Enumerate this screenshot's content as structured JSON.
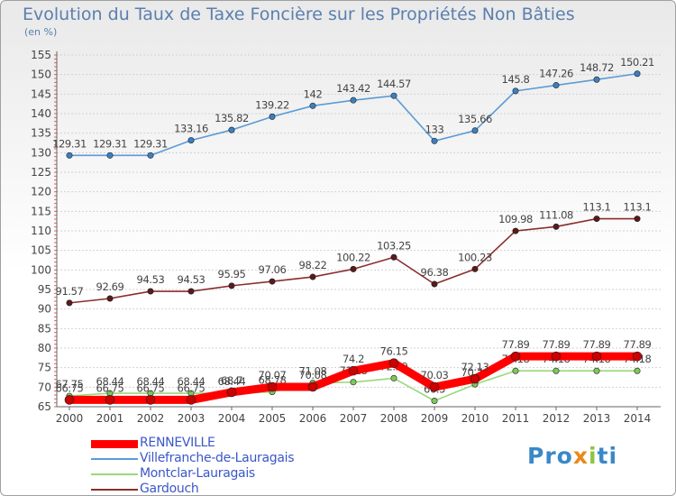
{
  "header": {
    "title": "Evolution du Taux de Taxe Foncière sur les Propriétés Non Bâties",
    "unit": "(en %)"
  },
  "brand": {
    "logo": "Proxiti",
    "colors": [
      "#3a88c8",
      "#e88a1a",
      "#8cc63f"
    ]
  },
  "chart_data": {
    "type": "line",
    "title": "Evolution du Taux de Taxe Foncière sur les Propriétés Non Bâties",
    "ylabel": "(en %)",
    "xlabel": "",
    "ylim": [
      65,
      155
    ],
    "yticks": [
      65,
      70,
      75,
      80,
      85,
      90,
      95,
      100,
      105,
      110,
      115,
      120,
      125,
      130,
      135,
      140,
      145,
      150,
      155
    ],
    "grid": "horizontal",
    "legend_position": "bottom-left",
    "x": [
      "2000",
      "2001",
      "2002",
      "2003",
      "2004",
      "2005",
      "2006",
      "2007",
      "2008",
      "2009",
      "2010",
      "2011",
      "2012",
      "2013",
      "2014"
    ],
    "series": [
      {
        "name": "Villefranche-de-Lauragais",
        "color": "#5b9bd5",
        "marker": "#3d7fbf",
        "width": 1.6,
        "values": [
          129.31,
          129.31,
          129.31,
          133.16,
          135.82,
          139.22,
          142,
          143.42,
          144.57,
          133,
          135.66,
          145.8,
          147.26,
          148.72,
          150.21
        ],
        "labels": [
          "129.31",
          "129.31",
          "129.31",
          "133.16",
          "135.82",
          "139.22",
          "142",
          "143.42",
          "144.57",
          "133",
          "135.66",
          "145.8",
          "147.26",
          "148.72",
          "150.21"
        ]
      },
      {
        "name": "Gardouch",
        "color": "#8b2e2e",
        "marker": "#5a1a1a",
        "width": 1.6,
        "values": [
          91.57,
          92.69,
          94.53,
          94.53,
          95.95,
          97.06,
          98.22,
          100.22,
          103.25,
          96.38,
          100.23,
          109.98,
          111.08,
          113.1,
          113.1
        ],
        "labels": [
          "91.57",
          "92.69",
          "94.53",
          "94.53",
          "95.95",
          "97.06",
          "98.22",
          "100.22",
          "103.25",
          "96.38",
          "100.23",
          "109.98",
          "111.08",
          "113.1",
          "113.1"
        ]
      },
      {
        "name": "Montclar-Lauragais",
        "color": "#9ad87a",
        "marker": "#7cc95a",
        "width": 1.6,
        "values": [
          67.75,
          68.44,
          68.44,
          68.44,
          68.44,
          68.78,
          71.08,
          71.28,
          72.29,
          66.5,
          70.74,
          74.18,
          74.18,
          74.18,
          74.18
        ],
        "labels": [
          "67.75",
          "68.44",
          "68.44",
          "68.44",
          "68.44",
          "68.78",
          "71.08",
          "71.28",
          "72.29",
          "66.5",
          "70.74",
          "74.18",
          "74.18",
          "74.18",
          "74.18"
        ]
      },
      {
        "name": "RENNEVILLE",
        "color": "#ff0000",
        "marker": "#cc0000",
        "width": 9,
        "values": [
          66.75,
          66.75,
          66.75,
          66.75,
          68.7,
          70.07,
          70.08,
          74.2,
          76.15,
          70.03,
          72.13,
          77.89,
          77.89,
          77.89,
          77.89
        ],
        "labels": [
          "66.75",
          "66.75",
          "66.75",
          "66.75",
          "68.7",
          "70.07",
          "70.08",
          "74.2",
          "76.15",
          "70.03",
          "72.13",
          "77.89",
          "77.89",
          "77.89",
          "77.89"
        ]
      }
    ],
    "legend": [
      "RENNEVILLE",
      "Villefranche-de-Lauragais",
      "Montclar-Lauragais",
      "Gardouch"
    ]
  }
}
